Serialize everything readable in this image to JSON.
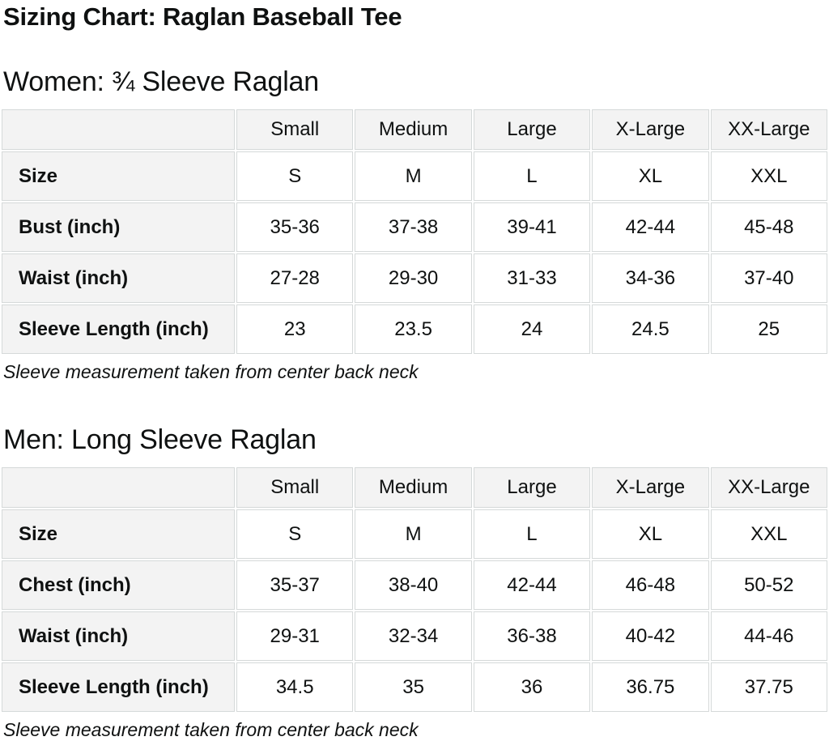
{
  "page": {
    "title": "Sizing Chart: Raglan Baseball Tee"
  },
  "colors": {
    "text": "#0f1111",
    "cell_border": "#d5d9d9",
    "header_cell_bg": "#f3f3f3",
    "data_cell_bg": "#ffffff",
    "page_bg": "#ffffff"
  },
  "sections": [
    {
      "heading": "Women: ¾ Sleeve Raglan",
      "note": "Sleeve measurement taken from center back neck",
      "table": {
        "column_headers": [
          "",
          "Small",
          "Medium",
          "Large",
          "X-Large",
          "XX-Large"
        ],
        "rows": [
          {
            "label": "Size",
            "values": [
              "S",
              "M",
              "L",
              "XL",
              "XXL"
            ]
          },
          {
            "label": "Bust (inch)",
            "values": [
              "35-36",
              "37-38",
              "39-41",
              "42-44",
              "45-48"
            ]
          },
          {
            "label": "Waist (inch)",
            "values": [
              "27-28",
              "29-30",
              "31-33",
              "34-36",
              "37-40"
            ]
          },
          {
            "label": "Sleeve Length (inch)",
            "values": [
              "23",
              "23.5",
              "24",
              "24.5",
              "25"
            ]
          }
        ]
      }
    },
    {
      "heading": "Men: Long Sleeve Raglan",
      "note": "Sleeve measurement taken from center back neck",
      "table": {
        "column_headers": [
          "",
          "Small",
          "Medium",
          "Large",
          "X-Large",
          "XX-Large"
        ],
        "rows": [
          {
            "label": "Size",
            "values": [
              "S",
              "M",
              "L",
              "XL",
              "XXL"
            ]
          },
          {
            "label": "Chest (inch)",
            "values": [
              "35-37",
              "38-40",
              "42-44",
              "46-48",
              "50-52"
            ]
          },
          {
            "label": "Waist (inch)",
            "values": [
              "29-31",
              "32-34",
              "36-38",
              "40-42",
              "44-46"
            ]
          },
          {
            "label": "Sleeve Length (inch)",
            "values": [
              "34.5",
              "35",
              "36",
              "36.75",
              "37.75"
            ]
          }
        ]
      }
    }
  ]
}
